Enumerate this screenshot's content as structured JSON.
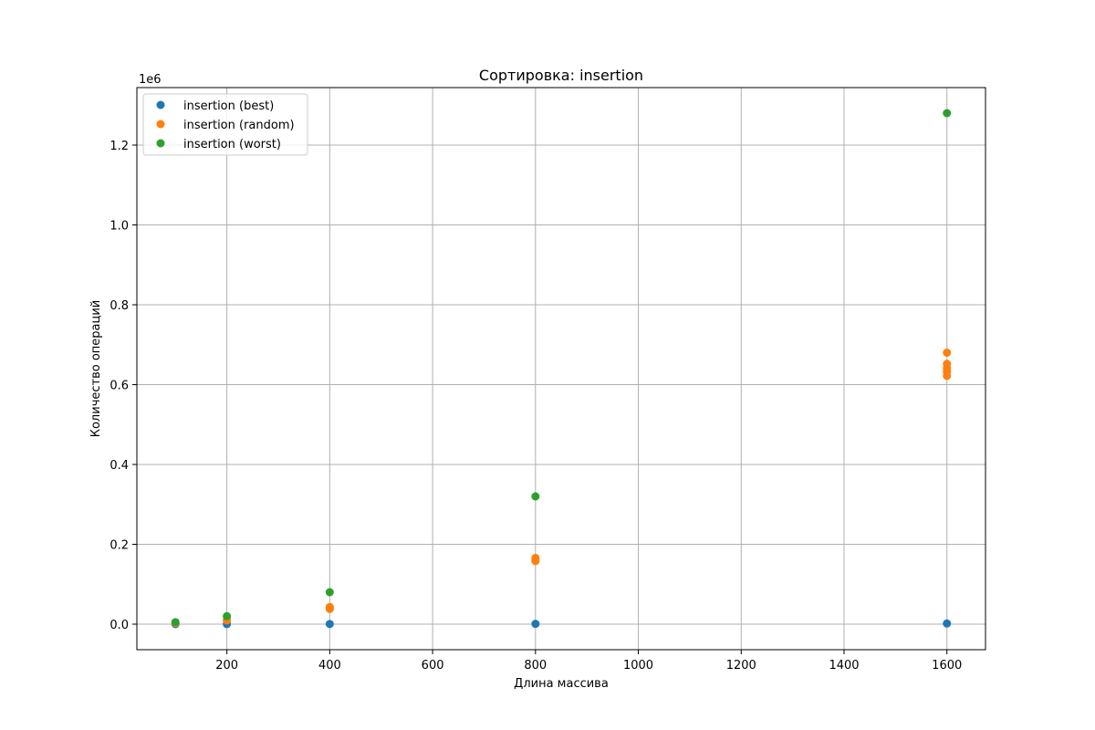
{
  "chart_data": {
    "type": "scatter",
    "title": "Сортировка: insertion",
    "xlabel": "Длина массива",
    "ylabel": "Количество операций",
    "y_multiplier_label": "1e6",
    "xlim": [
      25,
      1675
    ],
    "ylim": [
      -0.064,
      1.344
    ],
    "x_ticks": [
      200,
      400,
      600,
      800,
      1000,
      1200,
      1400,
      1600
    ],
    "x_tick_labels": [
      "200",
      "400",
      "600",
      "800",
      "1000",
      "1200",
      "1400",
      "1600"
    ],
    "y_ticks": [
      0.0,
      0.2,
      0.4,
      0.6,
      0.8,
      1.0,
      1.2
    ],
    "y_tick_labels": [
      "0.0",
      "0.2",
      "0.4",
      "0.6",
      "0.8",
      "1.0",
      "1.2"
    ],
    "grid": true,
    "legend_position": "top-left",
    "series": [
      {
        "name": "insertion (best)",
        "color": "#1f77b4",
        "points": [
          {
            "x": 100,
            "y": 0.0001
          },
          {
            "x": 200,
            "y": 0.0002
          },
          {
            "x": 400,
            "y": 0.0004
          },
          {
            "x": 800,
            "y": 0.0008
          },
          {
            "x": 1600,
            "y": 0.0016
          }
        ]
      },
      {
        "name": "insertion (random)",
        "color": "#ff7f0e",
        "points": [
          {
            "x": 100,
            "y": 0.0025
          },
          {
            "x": 200,
            "y": 0.0095
          },
          {
            "x": 200,
            "y": 0.0105
          },
          {
            "x": 400,
            "y": 0.038
          },
          {
            "x": 400,
            "y": 0.041
          },
          {
            "x": 400,
            "y": 0.043
          },
          {
            "x": 800,
            "y": 0.158
          },
          {
            "x": 800,
            "y": 0.162
          },
          {
            "x": 800,
            "y": 0.166
          },
          {
            "x": 1600,
            "y": 0.622
          },
          {
            "x": 1600,
            "y": 0.632
          },
          {
            "x": 1600,
            "y": 0.641
          },
          {
            "x": 1600,
            "y": 0.652
          },
          {
            "x": 1600,
            "y": 0.68
          }
        ]
      },
      {
        "name": "insertion (worst)",
        "color": "#2ca02c",
        "points": [
          {
            "x": 100,
            "y": 0.005
          },
          {
            "x": 200,
            "y": 0.02
          },
          {
            "x": 400,
            "y": 0.08
          },
          {
            "x": 800,
            "y": 0.32
          },
          {
            "x": 1600,
            "y": 1.28
          }
        ]
      }
    ]
  }
}
